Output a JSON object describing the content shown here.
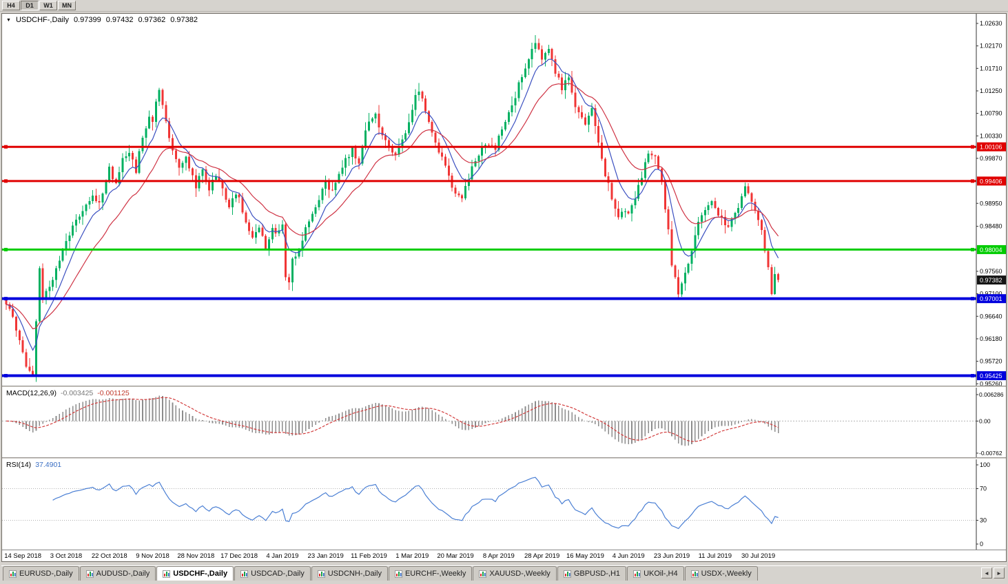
{
  "toolbar": {
    "timeframes": [
      {
        "label": "H4",
        "active": false
      },
      {
        "label": "D1",
        "active": true
      },
      {
        "label": "W1",
        "active": false
      },
      {
        "label": "MN",
        "active": false
      }
    ]
  },
  "window": {
    "tabs": [
      {
        "label": "EURUSD-,Daily",
        "active": false
      },
      {
        "label": "AUDUSD-,Daily",
        "active": false
      },
      {
        "label": "USDCHF-,Daily",
        "active": true
      },
      {
        "label": "USDCAD-,Daily",
        "active": false
      },
      {
        "label": "USDCNH-,Daily",
        "active": false
      },
      {
        "label": "EURCHF-,Weekly",
        "active": false
      },
      {
        "label": "XAUUSD-,Weekly",
        "active": false
      },
      {
        "label": "GBPUSD-,H1",
        "active": false
      },
      {
        "label": "UKOil-,H4",
        "active": false
      },
      {
        "label": "USDX-,Weekly",
        "active": false
      }
    ],
    "tab_nav": {
      "left": "◄",
      "right": "►"
    }
  },
  "chart_data": {
    "type": "candlestick",
    "symbol": "USDCHF-",
    "timeframe": "Daily",
    "title": "USDCHF-,Daily",
    "ohlc": {
      "open": "0.97399",
      "high": "0.97432",
      "low": "0.97362",
      "close": "0.97382"
    },
    "bars_total": 233,
    "y_axis": {
      "max": 1.02827,
      "min": 0.95221,
      "scale": 7100,
      "ticks": [
        {
          "v": 1.0263,
          "t": "1.02630"
        },
        {
          "v": 1.0217,
          "t": "1.02170"
        },
        {
          "v": 1.0171,
          "t": "1.01710"
        },
        {
          "v": 1.0125,
          "t": "1.01250"
        },
        {
          "v": 1.0079,
          "t": "1.00790"
        },
        {
          "v": 1.0033,
          "t": "1.00330"
        },
        {
          "v": 0.9987,
          "t": "0.99870"
        },
        {
          "v": 0.9895,
          "t": "0.98950"
        },
        {
          "v": 0.9848,
          "t": "0.98480"
        },
        {
          "v": 0.9756,
          "t": "0.97560"
        },
        {
          "v": 0.971,
          "t": "0.97100"
        },
        {
          "v": 0.9664,
          "t": "0.96640"
        },
        {
          "v": 0.9618,
          "t": "0.96180"
        },
        {
          "v": 0.9572,
          "t": "0.95720"
        },
        {
          "v": 0.9526,
          "t": "0.95260"
        }
      ]
    },
    "x_labels": [
      {
        "bar": 5,
        "text": "14 Sep 2018"
      },
      {
        "bar": 18,
        "text": "3 Oct 2018"
      },
      {
        "bar": 31,
        "text": "22 Oct 2018"
      },
      {
        "bar": 44,
        "text": "9 Nov 2018"
      },
      {
        "bar": 57,
        "text": "28 Nov 2018"
      },
      {
        "bar": 70,
        "text": "17 Dec 2018"
      },
      {
        "bar": 83,
        "text": "4 Jan 2019"
      },
      {
        "bar": 96,
        "text": "23 Jan 2019"
      },
      {
        "bar": 109,
        "text": "11 Feb 2019"
      },
      {
        "bar": 122,
        "text": "1 Mar 2019"
      },
      {
        "bar": 135,
        "text": "20 Mar 2019"
      },
      {
        "bar": 148,
        "text": "8 Apr 2019"
      },
      {
        "bar": 161,
        "text": "28 Apr 2019"
      },
      {
        "bar": 174,
        "text": "16 May 2019"
      },
      {
        "bar": 187,
        "text": "4 Jun 2019"
      },
      {
        "bar": 200,
        "text": "23 Jun 2019"
      },
      {
        "bar": 213,
        "text": "11 Jul 2019"
      },
      {
        "bar": 226,
        "text": "30 Jul 2019"
      }
    ],
    "price_path_anchors": [
      [
        0,
        0.9688
      ],
      [
        2,
        0.966
      ],
      [
        4,
        0.9612
      ],
      [
        6,
        0.9558
      ],
      [
        8,
        0.9543
      ],
      [
        9,
        0.9648
      ],
      [
        10,
        0.9768
      ],
      [
        11,
        0.9695
      ],
      [
        13,
        0.9725
      ],
      [
        15,
        0.9762
      ],
      [
        18,
        0.9812
      ],
      [
        20,
        0.9846
      ],
      [
        22,
        0.9868
      ],
      [
        24,
        0.9896
      ],
      [
        26,
        0.9916
      ],
      [
        28,
        0.9896
      ],
      [
        30,
        0.9946
      ],
      [
        31,
        0.9964
      ],
      [
        33,
        0.9936
      ],
      [
        35,
        0.9986
      ],
      [
        37,
        1.0002
      ],
      [
        39,
        0.9962
      ],
      [
        41,
        1.0032
      ],
      [
        43,
        1.0076
      ],
      [
        44,
        1.0058
      ],
      [
        45,
        1.0108
      ],
      [
        46,
        1.0122
      ],
      [
        48,
        1.0062
      ],
      [
        50,
        1.0006
      ],
      [
        52,
        0.9966
      ],
      [
        54,
        0.9996
      ],
      [
        56,
        0.9946
      ],
      [
        57,
        0.9932
      ],
      [
        59,
        0.9966
      ],
      [
        61,
        0.9922
      ],
      [
        63,
        0.9956
      ],
      [
        65,
        0.9922
      ],
      [
        67,
        0.9892
      ],
      [
        69,
        0.9912
      ],
      [
        70,
        0.9902
      ],
      [
        72,
        0.9852
      ],
      [
        74,
        0.9826
      ],
      [
        76,
        0.9846
      ],
      [
        78,
        0.9806
      ],
      [
        80,
        0.9842
      ],
      [
        82,
        0.9836
      ],
      [
        83,
        0.9856
      ],
      [
        84,
        0.9746
      ],
      [
        85,
        0.9732
      ],
      [
        86,
        0.9776
      ],
      [
        88,
        0.9802
      ],
      [
        90,
        0.9842
      ],
      [
        92,
        0.9876
      ],
      [
        94,
        0.9906
      ],
      [
        96,
        0.9936
      ],
      [
        98,
        0.9916
      ],
      [
        100,
        0.9956
      ],
      [
        102,
        0.9986
      ],
      [
        104,
        1.0006
      ],
      [
        106,
        0.9976
      ],
      [
        108,
        1.0042
      ],
      [
        109,
        1.0062
      ],
      [
        111,
        1.0076
      ],
      [
        113,
        1.0036
      ],
      [
        115,
        1.0006
      ],
      [
        117,
        0.9996
      ],
      [
        119,
        1.0022
      ],
      [
        121,
        1.0062
      ],
      [
        122,
        1.0086
      ],
      [
        123,
        1.0118
      ],
      [
        124,
        1.0126
      ],
      [
        126,
        1.0082
      ],
      [
        128,
        1.0042
      ],
      [
        130,
        1.0002
      ],
      [
        132,
        0.9966
      ],
      [
        134,
        0.9932
      ],
      [
        135,
        0.9916
      ],
      [
        137,
        0.9906
      ],
      [
        139,
        0.9946
      ],
      [
        141,
        0.9986
      ],
      [
        143,
        1.0006
      ],
      [
        145,
        1.0016
      ],
      [
        147,
        1.0006
      ],
      [
        148,
        1.0036
      ],
      [
        150,
        1.0066
      ],
      [
        152,
        1.0096
      ],
      [
        154,
        1.0136
      ],
      [
        156,
        1.0176
      ],
      [
        158,
        1.0216
      ],
      [
        159,
        1.0226
      ],
      [
        161,
        1.0192
      ],
      [
        163,
        1.0212
      ],
      [
        165,
        1.0166
      ],
      [
        167,
        1.0132
      ],
      [
        169,
        1.0152
      ],
      [
        171,
        1.0092
      ],
      [
        174,
        1.0056
      ],
      [
        176,
        1.0086
      ],
      [
        178,
        1.0016
      ],
      [
        180,
        0.9956
      ],
      [
        182,
        0.9906
      ],
      [
        184,
        0.9872
      ],
      [
        187,
        0.9876
      ],
      [
        189,
        0.9906
      ],
      [
        191,
        0.9952
      ],
      [
        193,
        1.0002
      ],
      [
        195,
        0.9986
      ],
      [
        197,
        0.9936
      ],
      [
        199,
        0.9842
      ],
      [
        200,
        0.9766
      ],
      [
        202,
        0.9712
      ],
      [
        204,
        0.9756
      ],
      [
        206,
        0.9796
      ],
      [
        208,
        0.9856
      ],
      [
        210,
        0.9886
      ],
      [
        212,
        0.9906
      ],
      [
        213,
        0.9886
      ],
      [
        215,
        0.9862
      ],
      [
        217,
        0.9846
      ],
      [
        219,
        0.9876
      ],
      [
        221,
        0.9906
      ],
      [
        222,
        0.9932
      ],
      [
        224,
        0.9892
      ],
      [
        226,
        0.9862
      ],
      [
        227,
        0.9842
      ],
      [
        228,
        0.9802
      ],
      [
        229,
        0.9762
      ],
      [
        230,
        0.9716
      ],
      [
        231,
        0.9746
      ],
      [
        232,
        0.97382
      ]
    ],
    "hlines": [
      {
        "price": 1.00106,
        "label": "1.00106",
        "color": "#e00000",
        "lw": 3
      },
      {
        "price": 0.99406,
        "label": "0.99406",
        "color": "#e00000",
        "lw": 3
      },
      {
        "price": 0.98004,
        "label": "0.98004",
        "color": "#00cc00",
        "lw": 3
      },
      {
        "price": 0.97001,
        "label": "0.97001",
        "color": "#0000dd",
        "lw": 4
      },
      {
        "price": 0.95425,
        "label": "0.95425",
        "color": "#0000dd",
        "lw": 4
      }
    ],
    "current": {
      "price": 0.97382,
      "label": "0.97382",
      "color": "#151515"
    },
    "ma_periods": {
      "fast": 8,
      "slow": 21
    },
    "colors": {
      "up": "#00b061",
      "down": "#f03535",
      "ma_fast": "#3a4fc0",
      "ma_slow": "#cf3344",
      "macd_hist": "#8c8c8c",
      "macd_signal": "#d23b3b",
      "rsi": "#4a7fd4"
    },
    "indicators": {
      "macd": {
        "name": "MACD(12,26,9)",
        "fast": 12,
        "slow": 26,
        "signal": 9,
        "value_main": "-0.003425",
        "value_signal": "-0.001125",
        "axis_ticks": [
          {
            "v": 0.006286,
            "t": "0.006286"
          },
          {
            "v": 0,
            "t": "0.00"
          },
          {
            "v": -0.00762,
            "t": "-0.00762"
          }
        ]
      },
      "rsi": {
        "name": "RSI(14)",
        "period": 14,
        "value": "37.4901",
        "levels": [
          70,
          30
        ],
        "axis_ticks": [
          {
            "v": 100,
            "t": "100"
          },
          {
            "v": 70,
            "t": "70"
          },
          {
            "v": 30,
            "t": "30"
          },
          {
            "v": 0,
            "t": "0"
          }
        ]
      }
    }
  }
}
